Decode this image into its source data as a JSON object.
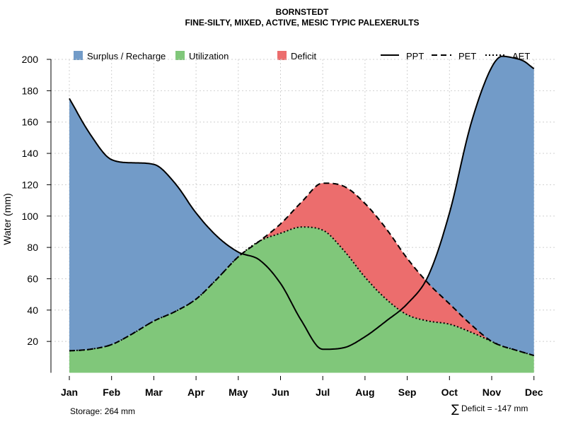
{
  "chart_data": {
    "type": "area",
    "title": "BORNSTEDT",
    "subtitle": "FINE-SILTY, MIXED, ACTIVE, MESIC TYPIC PALEXERULTS",
    "xlabel": "",
    "ylabel": "Water (mm)",
    "ylim": [
      0,
      200
    ],
    "yticks": [
      20,
      40,
      60,
      80,
      100,
      120,
      140,
      160,
      180,
      200
    ],
    "categories": [
      "Jan",
      "Feb",
      "Mar",
      "Apr",
      "May",
      "Jun",
      "Jul",
      "Aug",
      "Sep",
      "Oct",
      "Nov",
      "Dec"
    ],
    "x": [
      1,
      1.5,
      2,
      2.5,
      3,
      3.5,
      4,
      4.5,
      5,
      5.5,
      6,
      6.5,
      7,
      7.5,
      8,
      8.5,
      9,
      9.5,
      10,
      10.5,
      11,
      11.25,
      11.5,
      11.75,
      12
    ],
    "series": [
      {
        "name": "PPT",
        "line": "solid",
        "values": [
          175,
          152,
          136,
          134,
          133,
          121,
          102,
          87,
          77,
          72,
          57,
          33,
          15,
          16,
          23,
          33,
          44,
          62,
          102,
          158,
          195,
          202,
          201,
          199,
          194
        ]
      },
      {
        "name": "PET",
        "line": "dashed",
        "values": [
          14,
          15,
          18,
          25,
          33,
          39,
          47,
          60,
          74,
          84,
          95,
          109,
          121,
          119,
          108,
          92,
          73,
          57,
          44,
          31,
          20,
          17,
          15,
          13,
          11
        ]
      },
      {
        "name": "AET",
        "line": "dotted",
        "values": [
          14,
          15,
          18,
          25,
          33,
          39,
          47,
          60,
          74,
          84,
          89,
          93,
          91,
          78,
          61,
          47,
          37,
          33,
          31,
          26,
          20,
          17,
          15,
          13,
          11
        ]
      }
    ],
    "legend": {
      "areas": [
        {
          "label": "Surplus / Recharge",
          "color": "#729BC8"
        },
        {
          "label": "Utilization",
          "color": "#80C77A"
        },
        {
          "label": "Deficit",
          "color": "#EC6D6D"
        }
      ],
      "lines": [
        {
          "label": "PPT",
          "style": "solid"
        },
        {
          "label": "PET",
          "style": "dashed"
        },
        {
          "label": "AET",
          "style": "dotted"
        }
      ]
    },
    "annotations": {
      "storage": "Storage: 264 mm",
      "deficit_symbol": "∑",
      "deficit": "Deficit = -147 mm"
    }
  }
}
